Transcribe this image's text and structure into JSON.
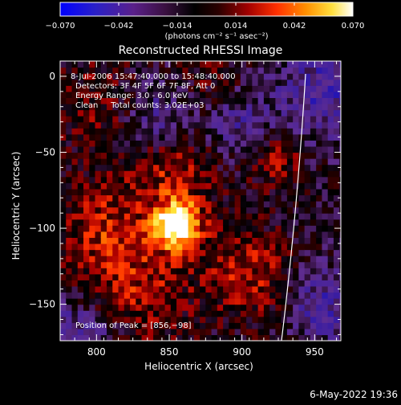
{
  "chart_data": {
    "type": "heatmap",
    "title": "Reconstructed RHESSI Image",
    "xlabel": "Heliocentric X (arcsec)",
    "ylabel": "Heliocentric Y (arcsec)",
    "xlim": [
      775,
      968
    ],
    "ylim": [
      -174,
      10
    ],
    "xticks": [
      "800",
      "850",
      "900",
      "950"
    ],
    "yticks": [
      "0",
      "−50",
      "−100",
      "−150"
    ],
    "colorbar": {
      "range": [
        -0.07,
        0.07
      ],
      "ticks": [
        "−0.070",
        "−0.042",
        "−0.014",
        "0.014",
        "0.042",
        "0.070"
      ],
      "unit_label": "(photons cm⁻² s⁻¹ asec⁻²)"
    },
    "annotations": [
      "8-Jul-2006 15:47:40.000 to 15:48:40.000",
      "Detectors: 3F 4F 5F 6F 7F 8F, Att 0",
      "Energy Range: 3.0 - 6.0 keV",
      "Clean     Total counts: 3.02E+03"
    ],
    "peak_label": "Position of Peak = [856,−98]",
    "peak": [
      856,
      -98
    ],
    "grid": false,
    "timestamp": "6-May-2022 19:36"
  },
  "colors": {
    "background": "#000000",
    "foreground": "#ffffff"
  }
}
